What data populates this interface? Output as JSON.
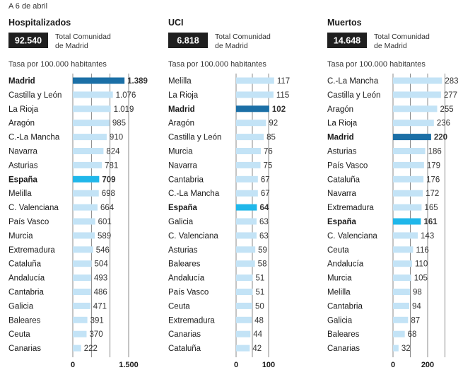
{
  "date_label": "A 6 de abril",
  "colors": {
    "bar": "#c3e3f6",
    "highlight_madrid": "#1b6fa6",
    "highlight_espana": "#20b7ea",
    "total_box": "#1f1f1f",
    "grid": "#6b6b6b",
    "text": "#1a1a1a"
  },
  "chart_data": [
    {
      "type": "bar",
      "orientation": "horizontal",
      "title": "Hospitalizados",
      "total_value": "92.540",
      "total_label_line1": "Total Comunidad",
      "total_label_line2": "de Madrid",
      "subtitle": "Tasa por 100.000 habitantes",
      "xlim": [
        0,
        1700
      ],
      "xticks": [
        {
          "value": 0,
          "label": "0"
        },
        {
          "value": 1500,
          "label": "1.500"
        }
      ],
      "gridlines": [
        0,
        500,
        1000,
        1500
      ],
      "categories": [
        "Madrid",
        "Castilla y León",
        "La Rioja",
        "Aragón",
        "C.-La Mancha",
        "Navarra",
        "Asturias",
        "España",
        "Melilla",
        "C. Valenciana",
        "País Vasco",
        "Murcia",
        "Extremadura",
        "Cataluña",
        "Andalucía",
        "Cantabria",
        "Galicia",
        "Baleares",
        "Ceuta",
        "Canarias"
      ],
      "values": [
        1389,
        1076,
        1019,
        985,
        910,
        824,
        781,
        709,
        698,
        664,
        601,
        589,
        546,
        504,
        493,
        486,
        471,
        391,
        370,
        222
      ],
      "value_labels": [
        "1.389",
        "1.076",
        "1.019",
        "985",
        "910",
        "824",
        "781",
        "709",
        "698",
        "664",
        "601",
        "589",
        "546",
        "504",
        "493",
        "486",
        "471",
        "391",
        "370",
        "222"
      ],
      "highlight": {
        "Madrid": "madrid",
        "España": "espana"
      }
    },
    {
      "type": "bar",
      "orientation": "horizontal",
      "title": "UCI",
      "total_value": "6.818",
      "total_label_line1": "Total Comunidad",
      "total_label_line2": "de Madrid",
      "subtitle": "Tasa por 100.000 habitantes",
      "xlim": [
        0,
        135
      ],
      "xticks": [
        {
          "value": 0,
          "label": "0"
        },
        {
          "value": 100,
          "label": "100"
        }
      ],
      "gridlines": [
        0,
        50,
        100
      ],
      "categories": [
        "Melilla",
        "La Rioja",
        "Madrid",
        "Aragón",
        "Castilla y León",
        "Murcia",
        "Navarra",
        "Cantabria",
        "C.-La Mancha",
        "España",
        "Galicia",
        "C. Valenciana",
        "Asturias",
        "Baleares",
        "Andalucía",
        "País Vasco",
        "Ceuta",
        "Extremadura",
        "Canarias",
        "Cataluña"
      ],
      "values": [
        117,
        115,
        102,
        92,
        85,
        76,
        75,
        67,
        67,
        64,
        63,
        63,
        59,
        58,
        51,
        51,
        50,
        48,
        44,
        42
      ],
      "value_labels": [
        "117",
        "115",
        "102",
        "92",
        "85",
        "76",
        "75",
        "67",
        "67",
        "64",
        "63",
        "63",
        "59",
        "58",
        "51",
        "51",
        "50",
        "48",
        "44",
        "42"
      ],
      "highlight": {
        "Madrid": "madrid",
        "España": "espana"
      }
    },
    {
      "type": "bar",
      "orientation": "horizontal",
      "title": "Muertos",
      "total_value": "14.648",
      "total_label_line1": "Total Comunidad",
      "total_label_line2": "de Madrid",
      "subtitle": "Tasa por 100.000 habitantes",
      "xlim": [
        0,
        330
      ],
      "xticks": [
        {
          "value": 0,
          "label": "0"
        },
        {
          "value": 200,
          "label": "200"
        }
      ],
      "gridlines": [
        0,
        100,
        200,
        300
      ],
      "categories": [
        "C.-La Mancha",
        "Castilla y León",
        "Aragón",
        "La Rioja",
        "Madrid",
        "Asturias",
        "País Vasco",
        "Cataluña",
        "Navarra",
        "Extremadura",
        "España",
        "C. Valenciana",
        "Ceuta",
        "Andalucía",
        "Murcia",
        "Melilla",
        "Cantabria",
        "Galicia",
        "Baleares",
        "Canarias"
      ],
      "values": [
        283,
        277,
        255,
        236,
        220,
        186,
        179,
        176,
        172,
        165,
        161,
        143,
        116,
        110,
        105,
        98,
        94,
        87,
        68,
        32
      ],
      "value_labels": [
        "283",
        "277",
        "255",
        "236",
        "220",
        "186",
        "179",
        "176",
        "172",
        "165",
        "161",
        "143",
        "116",
        "110",
        "105",
        "98",
        "94",
        "87",
        "68",
        "32"
      ],
      "highlight": {
        "Madrid": "madrid",
        "España": "espana"
      }
    }
  ]
}
